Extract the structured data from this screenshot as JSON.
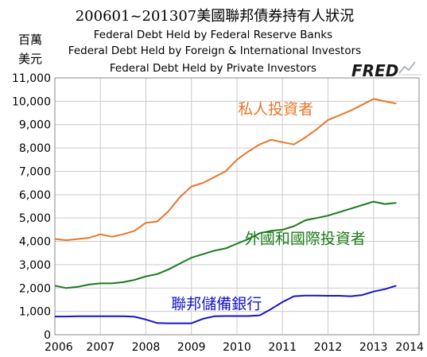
{
  "chart_data": {
    "type": "line",
    "title": "200601~201307美國聯邦債券持有人狀況",
    "unit_label": [
      "百萬",
      "美元"
    ],
    "series_titles": [
      "Federal Debt Held by Federal Reserve Banks",
      "Federal Debt Held by Foreign & International Investors",
      "Federal Debt Held by Private Investors"
    ],
    "logo_text": "FRED",
    "xlim": [
      2006,
      2014
    ],
    "ylim": [
      0,
      11000
    ],
    "x_ticks": [
      "2006",
      "2007",
      "2008",
      "2009",
      "2010",
      "2011",
      "2012",
      "2013",
      "2014"
    ],
    "y_ticks": [
      "0",
      "1,000",
      "2,000",
      "3,000",
      "4,000",
      "5,000",
      "6,000",
      "7,000",
      "8,000",
      "9,000",
      "10,000",
      "11,000"
    ],
    "grid": true,
    "series": [
      {
        "label": "私人投資者",
        "color": "#e8762a",
        "x": [
          2006.0,
          2006.25,
          2006.5,
          2006.75,
          2007.0,
          2007.25,
          2007.5,
          2007.75,
          2008.0,
          2008.25,
          2008.5,
          2008.75,
          2009.0,
          2009.25,
          2009.5,
          2009.75,
          2010.0,
          2010.25,
          2010.5,
          2010.75,
          2011.0,
          2011.25,
          2011.5,
          2011.75,
          2012.0,
          2012.25,
          2012.5,
          2012.75,
          2013.0,
          2013.25,
          2013.5
        ],
        "values": [
          4100,
          4050,
          4100,
          4150,
          4300,
          4200,
          4300,
          4450,
          4800,
          4850,
          5300,
          5900,
          6350,
          6500,
          6750,
          7000,
          7500,
          7850,
          8150,
          8350,
          8250,
          8150,
          8450,
          8800,
          9200,
          9400,
          9600,
          9850,
          10100,
          10000,
          9900
        ]
      },
      {
        "label": "外國和國際投資者",
        "color": "#1b7a1b",
        "x": [
          2006.0,
          2006.25,
          2006.5,
          2006.75,
          2007.0,
          2007.25,
          2007.5,
          2007.75,
          2008.0,
          2008.25,
          2008.5,
          2008.75,
          2009.0,
          2009.25,
          2009.5,
          2009.75,
          2010.0,
          2010.25,
          2010.5,
          2010.75,
          2011.0,
          2011.25,
          2011.5,
          2011.75,
          2012.0,
          2012.25,
          2012.5,
          2012.75,
          2013.0,
          2013.25,
          2013.5
        ],
        "values": [
          2100,
          2000,
          2050,
          2150,
          2200,
          2200,
          2250,
          2350,
          2500,
          2600,
          2800,
          3050,
          3300,
          3450,
          3600,
          3700,
          3900,
          4100,
          4350,
          4450,
          4500,
          4650,
          4900,
          5000,
          5100,
          5250,
          5400,
          5550,
          5700,
          5600,
          5650
        ]
      },
      {
        "label": "聯邦儲備銀行",
        "color": "#1414c8",
        "x": [
          2006.0,
          2006.25,
          2006.5,
          2006.75,
          2007.0,
          2007.25,
          2007.5,
          2007.75,
          2008.0,
          2008.25,
          2008.5,
          2008.75,
          2009.0,
          2009.25,
          2009.5,
          2009.75,
          2010.0,
          2010.25,
          2010.5,
          2010.75,
          2011.0,
          2011.25,
          2011.5,
          2011.75,
          2012.0,
          2012.25,
          2012.5,
          2012.75,
          2013.0,
          2013.25,
          2013.5
        ],
        "values": [
          780,
          780,
          790,
          790,
          790,
          790,
          790,
          770,
          650,
          500,
          490,
          490,
          490,
          680,
          790,
          800,
          800,
          800,
          830,
          1100,
          1400,
          1650,
          1680,
          1680,
          1670,
          1670,
          1650,
          1700,
          1850,
          1950,
          2100
        ]
      }
    ]
  }
}
